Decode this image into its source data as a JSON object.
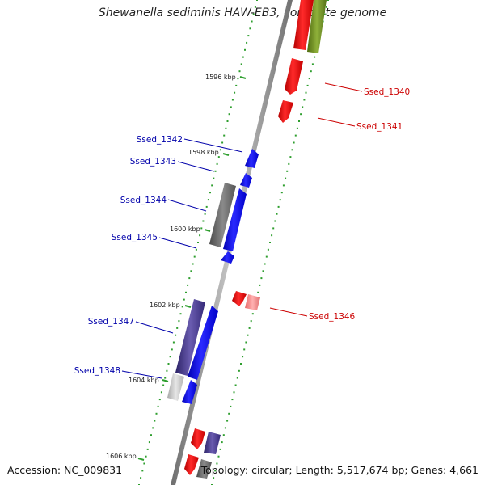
{
  "title": "Shewanella sediminis HAW-EB3, complete genome",
  "footer": {
    "accession": "Accession: NC_009831",
    "summary": "Topology: circular; Length: 5,517,674 bp; Genes: 4,661"
  },
  "colors": {
    "backbone": "#8a8a8a",
    "tick_dots": "#2e9e2e",
    "forward_gene": "#ff0000",
    "reverse_gene": "#0000ff",
    "other_gene": "#6b8e23",
    "pseudo_gene": "#666666",
    "label_red": "#cc0000",
    "label_blue": "#0000aa"
  },
  "kbp_ticks": [
    {
      "label": "1596 kbp",
      "pos": 1596
    },
    {
      "label": "1598 kbp",
      "pos": 1598
    },
    {
      "label": "1600 kbp",
      "pos": 1600
    },
    {
      "label": "1602 kbp",
      "pos": 1602
    },
    {
      "label": "1604 kbp",
      "pos": 1604
    },
    {
      "label": "1606 kbp",
      "pos": 1606
    }
  ],
  "genes_forward": [
    {
      "label": "Ssed_1340"
    },
    {
      "label": "Ssed_1341"
    },
    {
      "label": "Ssed_1346"
    }
  ],
  "genes_reverse": [
    {
      "label": "Ssed_1342"
    },
    {
      "label": "Ssed_1343"
    },
    {
      "label": "Ssed_1344"
    },
    {
      "label": "Ssed_1345"
    },
    {
      "label": "Ssed_1347"
    },
    {
      "label": "Ssed_1348"
    }
  ]
}
